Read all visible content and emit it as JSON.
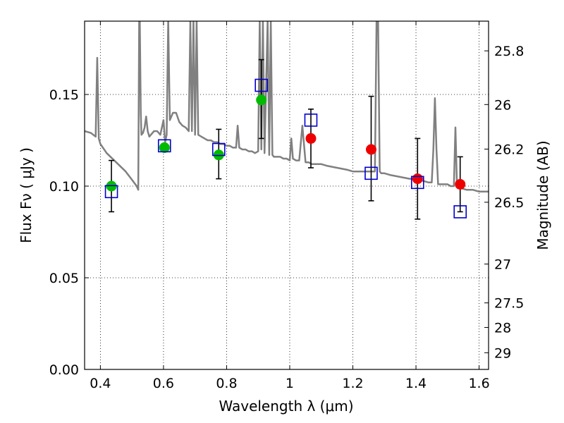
{
  "chart_data": {
    "type": "scatter",
    "title": "",
    "xlabel": "Wavelength  λ (μm)",
    "ylabel": "Flux  Fν  ( μJy )",
    "y2label": "Magnitude (AB)",
    "xlim": [
      0.35,
      1.63
    ],
    "ylim": [
      0.0,
      0.19
    ],
    "grid": true,
    "x_ticks": [
      0.4,
      0.6,
      0.8,
      1.0,
      1.2,
      1.4,
      1.6
    ],
    "x_tick_labels": [
      "0.4",
      "0.6",
      "0.8",
      "1",
      "1.2",
      "1.4",
      "1.6"
    ],
    "y_ticks": [
      0.0,
      0.05,
      0.1,
      0.15
    ],
    "y_tick_labels": [
      "0.00",
      "0.05",
      "0.10",
      "0.15"
    ],
    "y2_ticks": [
      {
        "label": "25.8",
        "flux": 0.1738
      },
      {
        "label": "26",
        "flux": 0.1445
      },
      {
        "label": "26.2",
        "flux": 0.1202
      },
      {
        "label": "26.5",
        "flux": 0.0912
      },
      {
        "label": "27",
        "flux": 0.0575
      },
      {
        "label": "27.5",
        "flux": 0.0363
      },
      {
        "label": "28",
        "flux": 0.0229
      },
      {
        "label": "29",
        "flux": 0.0091
      }
    ],
    "colors": {
      "model": "#808080",
      "green": "#00bb00",
      "red": "#ee0000",
      "square": "#0000cc",
      "errorbar": "#000000"
    },
    "series": [
      {
        "kind": "model_spectrum",
        "x": [
          0.35,
          0.37,
          0.385,
          0.39,
          0.395,
          0.4,
          0.42,
          0.45,
          0.48,
          0.5,
          0.515,
          0.52,
          0.523,
          0.525,
          0.528,
          0.53,
          0.535,
          0.54,
          0.545,
          0.55,
          0.555,
          0.56,
          0.57,
          0.58,
          0.59,
          0.6,
          0.605,
          0.61,
          0.615,
          0.62,
          0.63,
          0.64,
          0.65,
          0.66,
          0.67,
          0.68,
          0.685,
          0.69,
          0.695,
          0.7,
          0.705,
          0.71,
          0.72,
          0.73,
          0.74,
          0.75,
          0.76,
          0.77,
          0.78,
          0.79,
          0.8,
          0.81,
          0.82,
          0.83,
          0.835,
          0.84,
          0.85,
          0.86,
          0.87,
          0.88,
          0.89,
          0.9,
          0.905,
          0.91,
          0.915,
          0.92,
          0.93,
          0.935,
          0.94,
          0.945,
          0.95,
          0.96,
          0.97,
          0.98,
          0.99,
          1.0,
          1.005,
          1.01,
          1.02,
          1.03,
          1.04,
          1.05,
          1.06,
          1.07,
          1.08,
          1.1,
          1.12,
          1.15,
          1.18,
          1.2,
          1.22,
          1.25,
          1.27,
          1.275,
          1.28,
          1.285,
          1.29,
          1.3,
          1.32,
          1.35,
          1.38,
          1.4,
          1.42,
          1.44,
          1.45,
          1.455,
          1.46,
          1.465,
          1.47,
          1.5,
          1.51,
          1.52,
          1.525,
          1.53,
          1.54,
          1.56,
          1.58,
          1.6,
          1.63
        ],
        "y": [
          0.13,
          0.129,
          0.127,
          0.17,
          0.126,
          0.123,
          0.118,
          0.113,
          0.108,
          0.1035,
          0.1,
          0.098,
          0.19,
          0.19,
          0.14,
          0.128,
          0.129,
          0.132,
          0.138,
          0.13,
          0.127,
          0.128,
          0.13,
          0.13,
          0.128,
          0.136,
          0.124,
          0.128,
          0.19,
          0.136,
          0.14,
          0.14,
          0.135,
          0.133,
          0.132,
          0.13,
          0.19,
          0.13,
          0.19,
          0.128,
          0.19,
          0.128,
          0.127,
          0.126,
          0.125,
          0.125,
          0.124,
          0.124,
          0.123,
          0.123,
          0.122,
          0.122,
          0.121,
          0.121,
          0.133,
          0.121,
          0.12,
          0.12,
          0.119,
          0.119,
          0.118,
          0.119,
          0.19,
          0.12,
          0.19,
          0.118,
          0.19,
          0.117,
          0.19,
          0.117,
          0.116,
          0.116,
          0.116,
          0.115,
          0.115,
          0.114,
          0.126,
          0.115,
          0.114,
          0.114,
          0.133,
          0.113,
          0.113,
          0.112,
          0.112,
          0.112,
          0.111,
          0.11,
          0.109,
          0.108,
          0.108,
          0.108,
          0.108,
          0.19,
          0.19,
          0.108,
          0.107,
          0.107,
          0.106,
          0.105,
          0.104,
          0.104,
          0.103,
          0.102,
          0.102,
          0.12,
          0.148,
          0.12,
          0.101,
          0.101,
          0.1,
          0.1,
          0.132,
          0.1,
          0.099,
          0.098,
          0.098,
          0.097,
          0.097
        ]
      },
      {
        "kind": "observed_green",
        "name": "",
        "x": [
          0.435,
          0.603,
          0.775,
          0.91
        ],
        "y": [
          0.1,
          0.121,
          0.117,
          0.147
        ]
      },
      {
        "kind": "observed_red",
        "name": "",
        "x": [
          1.067,
          1.258,
          1.405,
          1.54
        ],
        "y": [
          0.126,
          0.12,
          0.104,
          0.101
        ]
      },
      {
        "kind": "model_squares",
        "name": "",
        "x": [
          0.435,
          0.603,
          0.775,
          0.91,
          1.067,
          1.258,
          1.405,
          1.54
        ],
        "y": [
          0.097,
          0.122,
          0.12,
          0.155,
          0.136,
          0.107,
          0.102,
          0.086
        ]
      }
    ],
    "errorbars": [
      {
        "x": 0.435,
        "y_low": 0.086,
        "y_high": 0.114
      },
      {
        "x": 0.775,
        "y_low": 0.104,
        "y_high": 0.131
      },
      {
        "x": 0.91,
        "y_low": 0.126,
        "y_high": 0.169
      },
      {
        "x": 1.067,
        "y_low": 0.11,
        "y_high": 0.142
      },
      {
        "x": 1.258,
        "y_low": 0.092,
        "y_high": 0.149
      },
      {
        "x": 1.405,
        "y_low": 0.082,
        "y_high": 0.126
      },
      {
        "x": 1.54,
        "y_low": 0.086,
        "y_high": 0.116
      }
    ]
  }
}
